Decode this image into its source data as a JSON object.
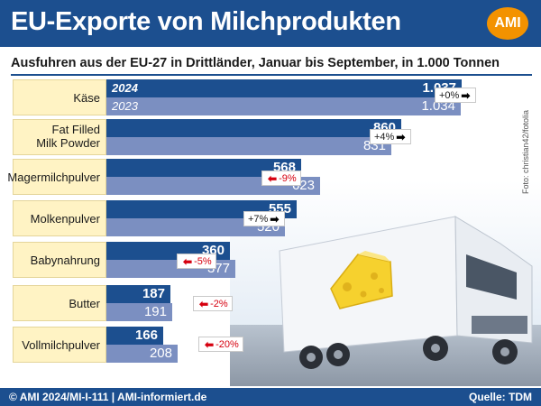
{
  "header": {
    "title": "EU-Exporte von Milchprodukten",
    "logo": "AMI"
  },
  "chart_data": {
    "type": "bar",
    "title": "EU-Exporte von Milchprodukten",
    "subtitle": "Ausfuhren aus der EU-27 in Drittländer, Januar bis September, in 1.000 Tonnen",
    "categories": [
      "Käse",
      "Fat Filled Milk Powder",
      "Magermilchpulver",
      "Molkenpulver",
      "Babynahrung",
      "Butter",
      "Vollmilchpulver"
    ],
    "category_lines": [
      [
        "Käse"
      ],
      [
        "Fat Filled",
        "Milk Powder"
      ],
      [
        "Magermilchpulver"
      ],
      [
        "Molkenpulver"
      ],
      [
        "Babynahrung"
      ],
      [
        "Butter"
      ],
      [
        "Vollmilchpulver"
      ]
    ],
    "series": [
      {
        "name": "2024",
        "values": [
          1037,
          860,
          568,
          555,
          360,
          187,
          166
        ],
        "labels": [
          "1.037",
          "860",
          "568",
          "555",
          "360",
          "187",
          "166"
        ],
        "color": "#1c4f8f"
      },
      {
        "name": "2023",
        "values": [
          1034,
          831,
          623,
          520,
          377,
          191,
          208
        ],
        "labels": [
          "1.034",
          "831",
          "623",
          "520",
          "377",
          "191",
          "208"
        ],
        "color": "#7b8fc1"
      }
    ],
    "changes": [
      "+0%",
      "+4%",
      "-9%",
      "+7%",
      "-5%",
      "-2%",
      "-20%"
    ],
    "change_direction": [
      "up",
      "up",
      "down",
      "up",
      "down",
      "down",
      "down"
    ],
    "orientation": "horizontal"
  },
  "photo_credit": "Foto: christian42/fotolia",
  "footer": {
    "left": "© AMI 2024/MI-I-111 | AMI-informiert.de",
    "right": "Quelle: TDM"
  },
  "colors": {
    "brand": "#1c4f8f",
    "accent": "#f39200",
    "label_bg": "#fff3c4",
    "negative": "#d6000f"
  }
}
